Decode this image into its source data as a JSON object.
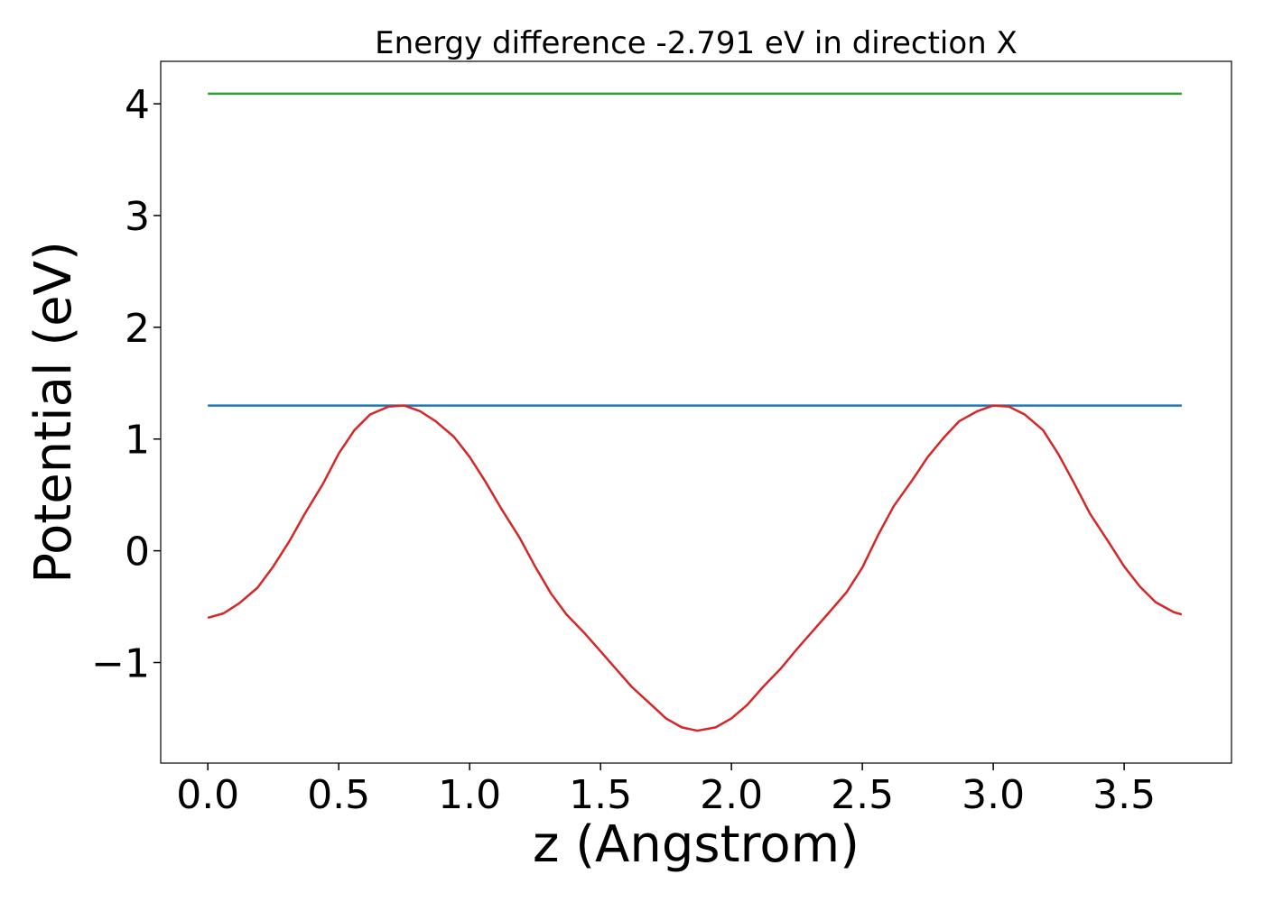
{
  "chart_data": {
    "type": "line",
    "title": "Energy difference -2.791 eV in direction X",
    "xlabel": "z (Angstrom)",
    "ylabel": "Potential (eV)",
    "xlim": [
      -0.18,
      3.91
    ],
    "ylim": [
      -1.9,
      4.38
    ],
    "xticks": [
      0.0,
      0.5,
      1.0,
      1.5,
      2.0,
      2.5,
      3.0,
      3.5
    ],
    "xtick_labels": [
      "0.0",
      "0.5",
      "1.0",
      "1.5",
      "2.0",
      "2.5",
      "3.0",
      "3.5"
    ],
    "yticks": [
      -1,
      0,
      1,
      2,
      3,
      4
    ],
    "ytick_labels": [
      "−1",
      "0",
      "1",
      "2",
      "3",
      "4"
    ],
    "grid": false,
    "series": [
      {
        "color": "#2ca02c",
        "x": [
          0.0,
          3.72
        ],
        "y": [
          4.09,
          4.09
        ]
      },
      {
        "color": "#1f77b4",
        "x": [
          0.0,
          3.72
        ],
        "y": [
          1.3,
          1.3
        ]
      },
      {
        "color": "#d62728",
        "x": [
          0.0,
          0.06,
          0.12,
          0.19,
          0.25,
          0.31,
          0.37,
          0.44,
          0.5,
          0.56,
          0.62,
          0.69,
          0.75,
          0.81,
          0.87,
          0.94,
          1.0,
          1.06,
          1.12,
          1.19,
          1.25,
          1.31,
          1.37,
          1.44,
          1.5,
          1.56,
          1.62,
          1.69,
          1.75,
          1.81,
          1.87,
          1.94,
          2.0,
          2.06,
          2.12,
          2.19,
          2.25,
          2.31,
          2.37,
          2.44,
          2.5,
          2.56,
          2.62,
          2.69,
          2.75,
          2.81,
          2.87,
          2.94,
          3.0,
          3.06,
          3.12,
          3.19,
          3.25,
          3.31,
          3.37,
          3.44,
          3.5,
          3.56,
          3.62,
          3.69,
          3.72
        ],
        "y": [
          -0.6,
          -0.56,
          -0.47,
          -0.33,
          -0.14,
          0.08,
          0.33,
          0.6,
          0.87,
          1.08,
          1.22,
          1.29,
          1.3,
          1.25,
          1.16,
          1.02,
          0.84,
          0.62,
          0.38,
          0.12,
          -0.14,
          -0.38,
          -0.57,
          -0.74,
          -0.9,
          -1.06,
          -1.22,
          -1.37,
          -1.5,
          -1.58,
          -1.61,
          -1.58,
          -1.5,
          -1.38,
          -1.22,
          -1.05,
          -0.88,
          -0.72,
          -0.56,
          -0.37,
          -0.15,
          0.14,
          0.4,
          0.63,
          0.84,
          1.01,
          1.16,
          1.25,
          1.3,
          1.29,
          1.22,
          1.08,
          0.86,
          0.6,
          0.33,
          0.08,
          -0.14,
          -0.32,
          -0.46,
          -0.55,
          -0.57
        ]
      }
    ]
  }
}
